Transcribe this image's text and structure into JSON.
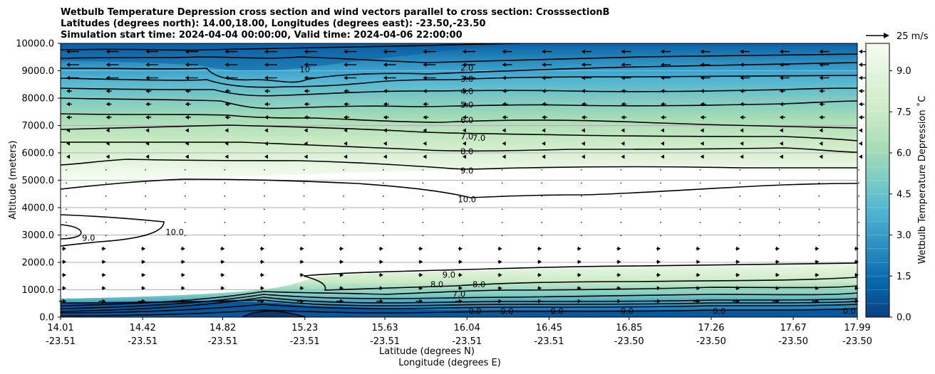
{
  "chart_data": {
    "type": "contour",
    "title_lines": [
      "Wetbulb Temperature Depression cross section and wind vectors parallel to cross section: CrosssectionB",
      "Latitudes (degrees north): 14.00,18.00, Longitudes (degrees east): -23.50,-23.50",
      "Simulation start time: 2024-04-04 00:00:00, Valid time: 2024-04-06 22:00:00"
    ],
    "ylabel": "Altitude (meters)",
    "xlabel_lat": "Latitude (degrees N)",
    "xlabel_lon": "Longitude (degrees E)",
    "y_ticks": [
      "0.0",
      "1000.0",
      "2000.0",
      "3000.0",
      "4000.0",
      "5000.0",
      "6000.0",
      "7000.0",
      "8000.0",
      "9000.0",
      "10000.0"
    ],
    "ylim": [
      0,
      10000
    ],
    "x_ticks": [
      {
        "lat": "14.01",
        "lon": "-23.51"
      },
      {
        "lat": "14.42",
        "lon": "-23.51"
      },
      {
        "lat": "14.82",
        "lon": "-23.51"
      },
      {
        "lat": "15.23",
        "lon": "-23.51"
      },
      {
        "lat": "15.63",
        "lon": "-23.51"
      },
      {
        "lat": "16.04",
        "lon": "-23.51"
      },
      {
        "lat": "16.45",
        "lon": "-23.51"
      },
      {
        "lat": "16.85",
        "lon": "-23.50"
      },
      {
        "lat": "17.26",
        "lon": "-23.50"
      },
      {
        "lat": "17.67",
        "lon": "-23.50"
      },
      {
        "lat": "17.99",
        "lon": "-23.50"
      }
    ],
    "colorbar": {
      "label": "Wetbulb Temperature Depression ˚C",
      "ticks": [
        "0.0",
        "1.5",
        "3.0",
        "4.5",
        "6.0",
        "7.5",
        "9.0"
      ],
      "range": [
        0,
        10
      ],
      "levels": 20,
      "colors": [
        "#084081",
        "#0868ac",
        "#2b8cbe",
        "#4eb3d3",
        "#7bccc4",
        "#a8ddb5",
        "#ccebc5",
        "#e0f3db",
        "#f7fcf0"
      ]
    },
    "wind_key": {
      "label": "25 m/s",
      "speed": 25
    },
    "contour_labels": [
      {
        "text": "2.0",
        "lat": 16.04,
        "alt": 9100
      },
      {
        "text": "3.0",
        "lat": 16.04,
        "alt": 8700
      },
      {
        "text": "4.0",
        "lat": 16.04,
        "alt": 8250
      },
      {
        "text": "5.0",
        "lat": 16.04,
        "alt": 7750
      },
      {
        "text": "6.0",
        "lat": 16.04,
        "alt": 7200
      },
      {
        "text": "7.0",
        "lat": 16.04,
        "alt": 6600
      },
      {
        "text": "7.0",
        "lat": 16.1,
        "alt": 6550
      },
      {
        "text": "8.0",
        "lat": 16.04,
        "alt": 6050
      },
      {
        "text": "9.0",
        "lat": 16.04,
        "alt": 5350
      },
      {
        "text": "10.0",
        "lat": 16.04,
        "alt": 4300
      },
      {
        "text": "10",
        "lat": 15.23,
        "alt": 9050
      },
      {
        "text": "9.0",
        "lat": 14.15,
        "alt": 2900
      },
      {
        "text": "10.0",
        "lat": 14.58,
        "alt": 3100
      },
      {
        "text": "9.0",
        "lat": 15.95,
        "alt": 1550
      },
      {
        "text": "8.0",
        "lat": 15.89,
        "alt": 1200
      },
      {
        "text": "8.0",
        "lat": 16.1,
        "alt": 1200
      },
      {
        "text": "7.0",
        "lat": 16.0,
        "alt": 850
      },
      {
        "text": "0.0",
        "lat": 16.08,
        "alt": 220
      },
      {
        "text": "0.0",
        "lat": 16.24,
        "alt": 220
      },
      {
        "text": "0.0",
        "lat": 16.49,
        "alt": 220
      },
      {
        "text": "0.0",
        "lat": 16.84,
        "alt": 220
      },
      {
        "text": "0.0",
        "lat": 17.3,
        "alt": 220
      },
      {
        "text": "0.0",
        "lat": 17.95,
        "alt": 220
      }
    ]
  }
}
